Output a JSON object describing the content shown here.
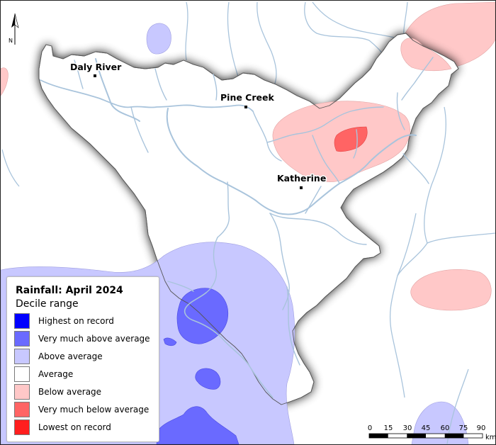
{
  "map": {
    "towns": [
      {
        "name": "Daly River"
      },
      {
        "name": "Pine Creek"
      },
      {
        "name": "Katherine"
      }
    ],
    "north_label": "N"
  },
  "legend": {
    "title": "Rainfall: April 2024",
    "subtitle": "Decile range",
    "items": [
      {
        "label": "Highest on record",
        "color": "#0000ff"
      },
      {
        "label": "Very much above average",
        "color": "#6a6aff"
      },
      {
        "label": "Above average",
        "color": "#c8c8ff"
      },
      {
        "label": "Average",
        "color": "#ffffff"
      },
      {
        "label": "Below average",
        "color": "#ffc8c8"
      },
      {
        "label": "Very much below average",
        "color": "#ff6464"
      },
      {
        "label": "Lowest on record",
        "color": "#ff1e1e"
      }
    ]
  },
  "scale_bar": {
    "ticks": [
      "0",
      "15",
      "30",
      "45",
      "60",
      "75",
      "90"
    ],
    "unit": "km"
  },
  "colors": {
    "river": "#a9c4dc",
    "basin_outline": "#555555",
    "above_average": "#c8c8ff",
    "very_much_above_average": "#6a6aff",
    "below_average": "#ffc8c8",
    "very_much_below_average": "#ff6464"
  }
}
